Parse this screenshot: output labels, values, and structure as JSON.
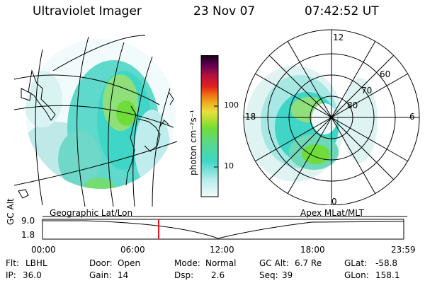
{
  "header": {
    "instrument": "Ultraviolet Imager",
    "date": "23 Nov 07",
    "time": "07:42:52 UT"
  },
  "colorbar": {
    "unit_label": "photon cm⁻²s⁻¹",
    "ticks": [
      "100",
      "10"
    ]
  },
  "map_left": {
    "label": "Geographic Lat/Lon"
  },
  "map_right": {
    "label": "Apex MLat/MLT",
    "mlt_labels": [
      "12",
      "18",
      "6",
      "0"
    ],
    "lat_labels": [
      "60",
      "70",
      "80"
    ]
  },
  "altitude_panel": {
    "axis_label": "GC Alt",
    "ticks": [
      "9.0",
      "1.8"
    ],
    "time_ticks": [
      "00:00",
      "06:00",
      "12:00",
      "18:00",
      "23:59"
    ],
    "current_time_fraction": 0.3215
  },
  "params": {
    "row1": [
      {
        "label": "Flt:",
        "value": "LBHL"
      },
      {
        "label": "Door:",
        "value": "Open"
      },
      {
        "label": "Mode:",
        "value": "Normal"
      },
      {
        "label": "GC Alt:",
        "value": "6.7 Re"
      },
      {
        "label": "GLat:",
        "value": "-58.8"
      }
    ],
    "row2": [
      {
        "label": "IP:",
        "value": "36.0"
      },
      {
        "label": "Gain:",
        "value": "14"
      },
      {
        "label": "Dsp:",
        "value": "2.6"
      },
      {
        "label": "Seq:",
        "value": "39"
      },
      {
        "label": "GLon:",
        "value": "158.1"
      }
    ]
  },
  "colors": {
    "low": "#dff3f3",
    "cyan": "#3fd6c8",
    "green": "#6fdc3a",
    "yellow": "#e8e040",
    "marker": "#e8141e"
  }
}
